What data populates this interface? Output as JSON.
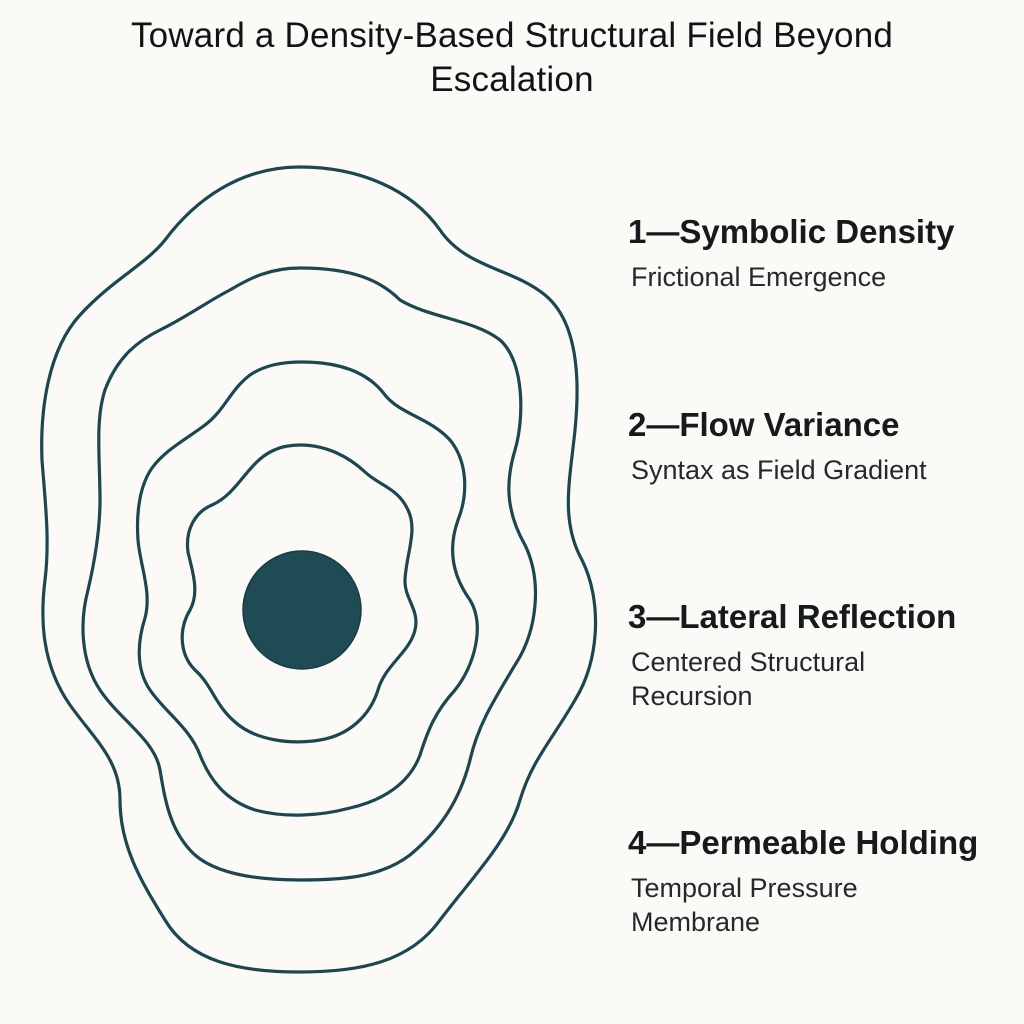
{
  "title": {
    "line1": "Toward a Density-Based Structural Field Beyond",
    "line2": "Escalation"
  },
  "labels": [
    {
      "heading": "1—Symbolic Density",
      "sub": "Frictional Emergence"
    },
    {
      "heading": "2—Flow Variance",
      "sub": "Syntax as Field Gradient"
    },
    {
      "heading": "3—Lateral Reflection",
      "sub": "Centered Structural Recursion"
    },
    {
      "heading": "4—Permeable Holding",
      "sub": "Temporal Pressure Membrane"
    }
  ],
  "colors": {
    "background": "#fbfaf6",
    "contour_stroke": "#1c4750",
    "core_fill": "#1f4b55",
    "text": "#151a1d"
  }
}
